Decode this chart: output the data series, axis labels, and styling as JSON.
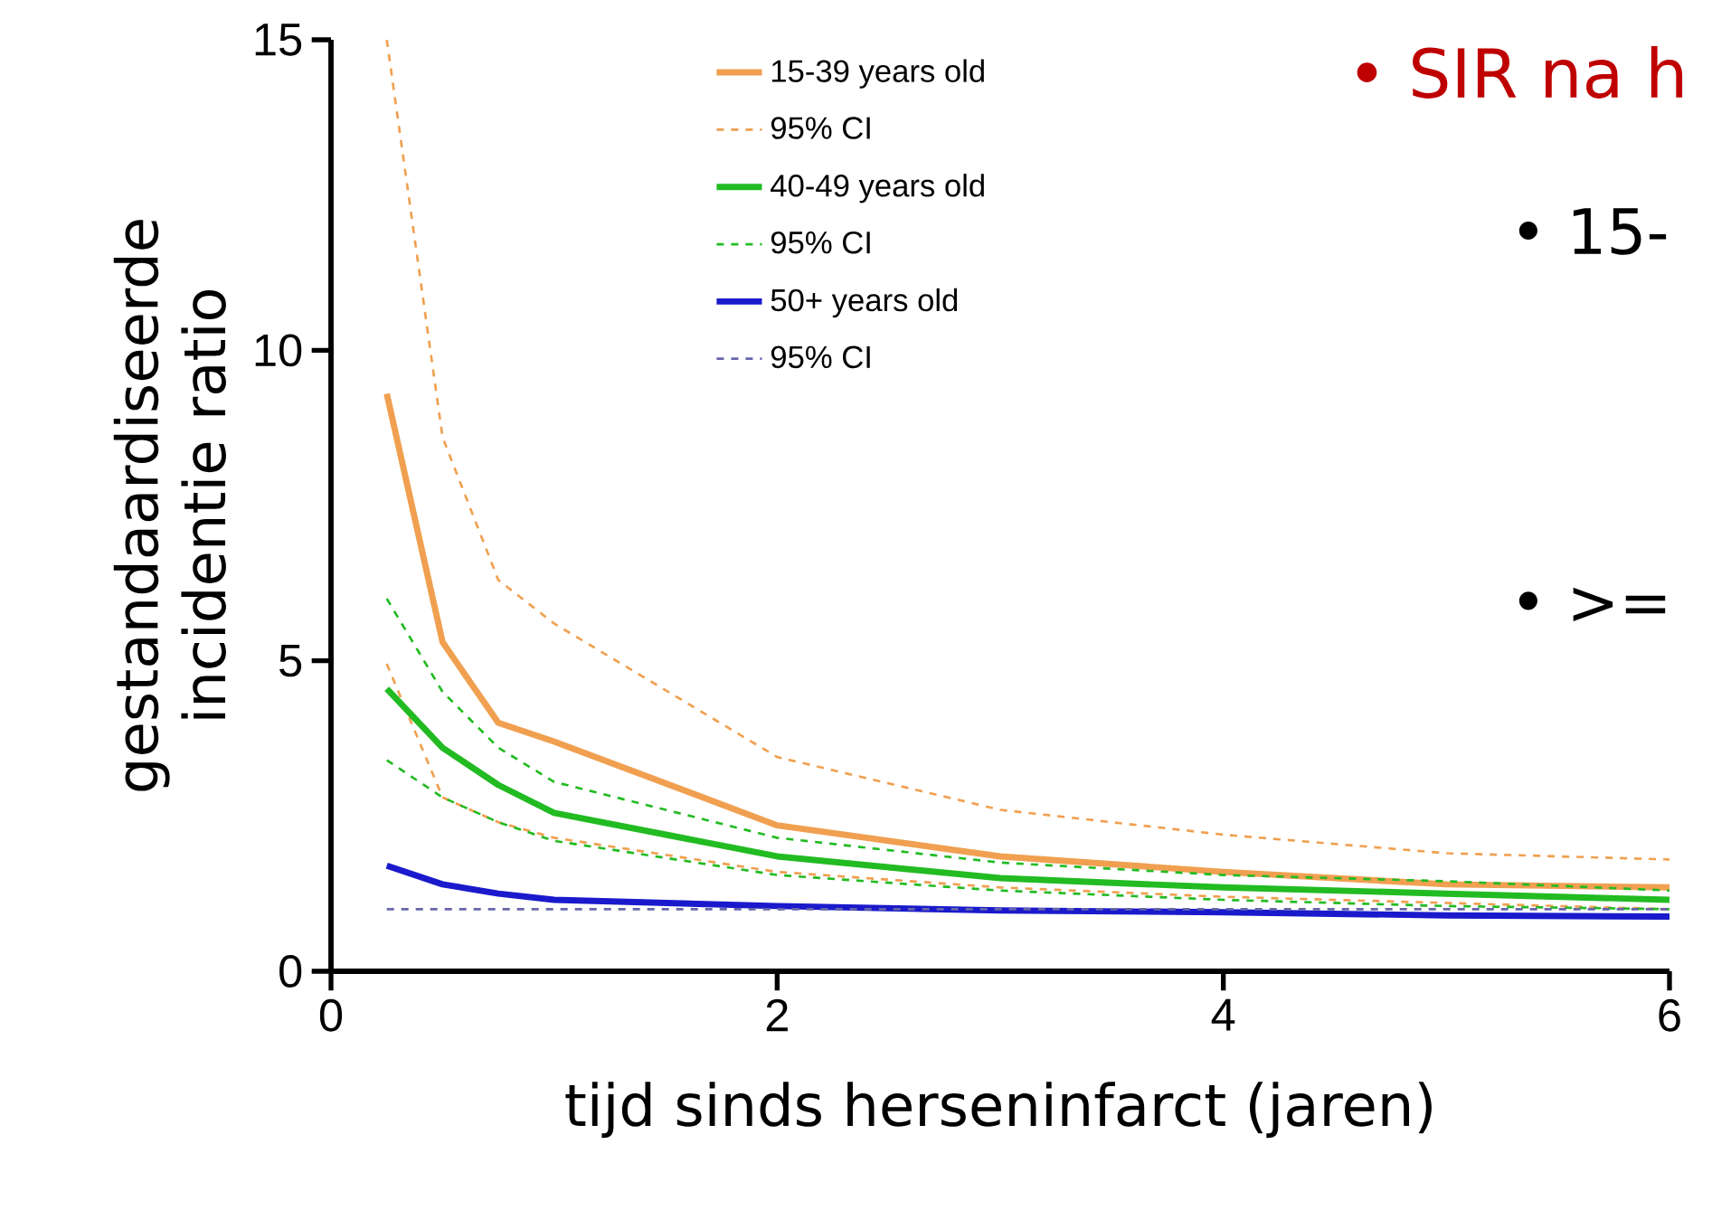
{
  "chart_data": {
    "type": "line",
    "xlabel": "tijd sinds herseninfarct (jaren)",
    "ylabel": "gestandaardiseerde incidentie ratio",
    "x": [
      0.25,
      0.5,
      0.75,
      1,
      2,
      3,
      4,
      5,
      6
    ],
    "series": [
      {
        "name": "15-39 years old",
        "color": "#f0a050",
        "line_style": "solid",
        "values": [
          9.3,
          5.3,
          4.0,
          3.7,
          2.35,
          1.85,
          1.6,
          1.4,
          1.35
        ]
      },
      {
        "name": "95% CI",
        "color": "#f0a050",
        "line_style": "dashed",
        "values": [
          15.0,
          8.6,
          6.3,
          5.6,
          3.45,
          2.6,
          2.2,
          1.9,
          1.8
        ]
      },
      {
        "color": "#f0a050",
        "line_style": "dashed",
        "values": [
          4.95,
          2.8,
          2.4,
          2.15,
          1.6,
          1.35,
          1.2,
          1.1,
          1.0
        ]
      },
      {
        "name": "40-49 years old",
        "color": "#22bb22",
        "line_style": "solid",
        "values": [
          4.55,
          3.6,
          3.0,
          2.55,
          1.85,
          1.5,
          1.35,
          1.25,
          1.15
        ]
      },
      {
        "name": "95% CI",
        "color": "#22bb22",
        "line_style": "dashed",
        "values": [
          6.0,
          4.5,
          3.6,
          3.05,
          2.15,
          1.75,
          1.55,
          1.45,
          1.3
        ]
      },
      {
        "color": "#22bb22",
        "line_style": "dashed",
        "values": [
          3.4,
          2.8,
          2.4,
          2.1,
          1.55,
          1.3,
          1.15,
          1.05,
          1.0
        ]
      },
      {
        "name": "50+ years old",
        "color": "#1a1acc",
        "line_style": "solid",
        "values": [
          1.7,
          1.4,
          1.25,
          1.15,
          1.05,
          0.98,
          0.95,
          0.9,
          0.88
        ]
      },
      {
        "name": "95% CI",
        "color": "#6666aa",
        "line_style": "dashed",
        "values": [
          1.0,
          1.0,
          1.0,
          1.0,
          1.0,
          1.0,
          1.0,
          1.0,
          1.0
        ]
      }
    ],
    "xlim": [
      0,
      6
    ],
    "ylim": [
      0,
      15
    ],
    "xticks": [
      0,
      2,
      4,
      6
    ],
    "yticks": [
      0,
      5,
      10,
      15
    ],
    "legend": "top",
    "grid": false,
    "annotations": [
      "•  SIR na h",
      "•  15-",
      "•  >="
    ]
  }
}
